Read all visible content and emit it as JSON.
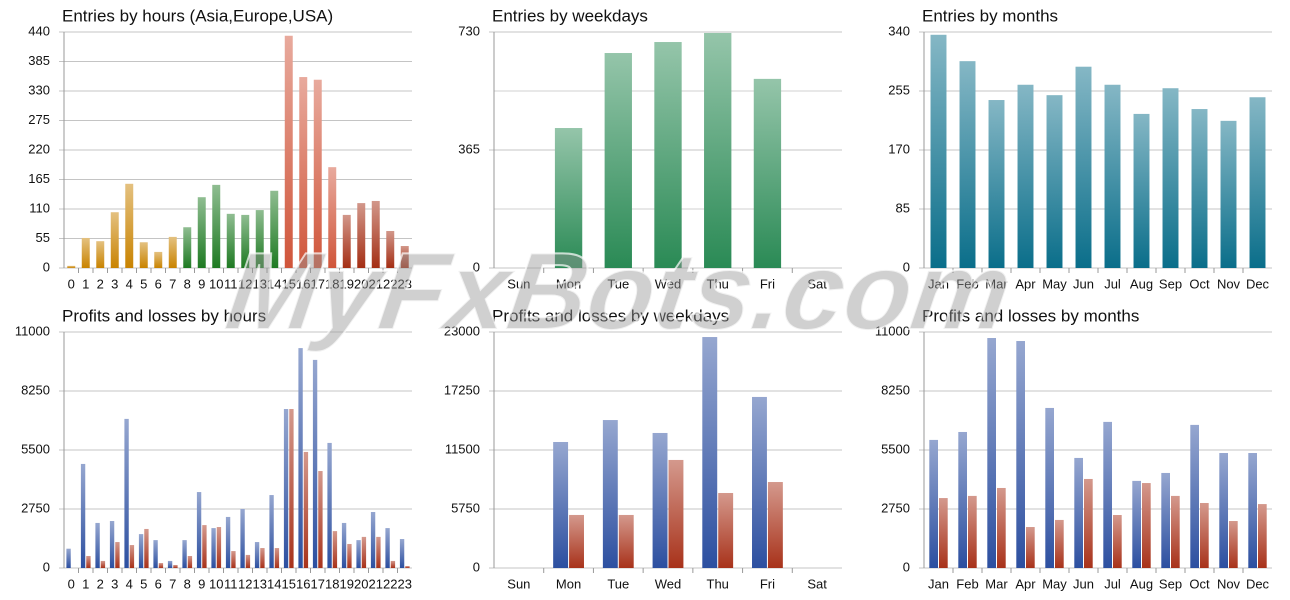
{
  "watermark": "MyFxBots.com",
  "chart_data": [
    {
      "type": "bar",
      "title": "Entries by hours (Asia,Europe,USA)",
      "categories": [
        "0",
        "1",
        "2",
        "3",
        "4",
        "5",
        "6",
        "7",
        "8",
        "9",
        "10",
        "11",
        "12",
        "13",
        "14",
        "15",
        "16",
        "17",
        "18",
        "19",
        "20",
        "21",
        "22",
        "23"
      ],
      "values": [
        4,
        56,
        50,
        104,
        157,
        48,
        30,
        58,
        76,
        132,
        155,
        101,
        99,
        108,
        144,
        433,
        356,
        351,
        188,
        99,
        121,
        125,
        69,
        41
      ],
      "colors": [
        "#c98300",
        "#c98300",
        "#c98300",
        "#c98300",
        "#c98300",
        "#c98300",
        "#c98300",
        "#c98300",
        "#1e7a22",
        "#1e7a22",
        "#1e7a22",
        "#1e7a22",
        "#1e7a22",
        "#1e7a22",
        "#1e7a22",
        "#d0553a",
        "#d0553a",
        "#d0553a",
        "#d0553a",
        "#a42e14",
        "#a42e14",
        "#a42e14",
        "#a42e14",
        "#a42e14"
      ],
      "ylim": [
        0,
        440
      ],
      "yticks": [
        0,
        55,
        110,
        165,
        220,
        275,
        330,
        385,
        440
      ],
      "grid": true
    },
    {
      "type": "bar",
      "title": "Entries by weekdays",
      "categories": [
        "Sun",
        "Mon",
        "Tue",
        "Wed",
        "Thu",
        "Fri",
        "Sat"
      ],
      "values": [
        0,
        433,
        665,
        699,
        727,
        585,
        0
      ],
      "color": "#2a8a55",
      "ylim": [
        0,
        730
      ],
      "yticks": [
        0,
        365,
        730
      ],
      "grid": true,
      "minor_grid": true
    },
    {
      "type": "bar",
      "title": "Entries by months",
      "categories": [
        "Jan",
        "Feb",
        "Mar",
        "Apr",
        "May",
        "Jun",
        "Jul",
        "Aug",
        "Sep",
        "Oct",
        "Nov",
        "Dec"
      ],
      "values": [
        336,
        298,
        242,
        264,
        249,
        290,
        264,
        222,
        259,
        229,
        212,
        246
      ],
      "color": "#0a6e8a",
      "ylim": [
        0,
        340
      ],
      "yticks": [
        0,
        85,
        170,
        255,
        340
      ],
      "grid": true
    },
    {
      "type": "grouped-bar",
      "title": "Profits and losses by hours",
      "categories": [
        "0",
        "1",
        "2",
        "3",
        "4",
        "5",
        "6",
        "7",
        "8",
        "9",
        "10",
        "11",
        "12",
        "13",
        "14",
        "15",
        "16",
        "17",
        "18",
        "19",
        "20",
        "21",
        "22",
        "23"
      ],
      "series": [
        {
          "color": "#2c4fa0",
          "values": [
            900,
            4850,
            2100,
            2190,
            6950,
            1580,
            1300,
            330,
            1300,
            3540,
            1860,
            2380,
            2750,
            1210,
            3400,
            7410,
            10250,
            9700,
            5830,
            2100,
            1300,
            2610,
            1860,
            1350
          ]
        },
        {
          "color": "#a8321a",
          "values": [
            0,
            560,
            330,
            1210,
            1070,
            1820,
            230,
            140,
            560,
            2000,
            1910,
            790,
            610,
            930,
            930,
            7410,
            5410,
            4520,
            1720,
            1120,
            1450,
            1450,
            330,
            90
          ]
        }
      ],
      "ylim": [
        0,
        11000
      ],
      "yticks": [
        0,
        2750,
        5500,
        8250,
        11000
      ],
      "grid": true
    },
    {
      "type": "grouped-bar",
      "title": "Profits and losses by weekdays",
      "categories": [
        "Sun",
        "Mon",
        "Tue",
        "Wed",
        "Thu",
        "Fri",
        "Sat"
      ],
      "series": [
        {
          "color": "#2c4fa0",
          "values": [
            0,
            12280,
            14420,
            13160,
            22510,
            16670,
            0
          ]
        },
        {
          "color": "#a8321a",
          "values": [
            0,
            5170,
            5170,
            10530,
            7310,
            8380,
            0
          ]
        }
      ],
      "ylim": [
        0,
        23000
      ],
      "yticks": [
        0,
        5750,
        11500,
        17250,
        23000
      ],
      "grid": true
    },
    {
      "type": "grouped-bar",
      "title": "Profits and losses by months",
      "categories": [
        "Jan",
        "Feb",
        "Mar",
        "Apr",
        "May",
        "Jun",
        "Jul",
        "Aug",
        "Sep",
        "Oct",
        "Nov",
        "Dec"
      ],
      "series": [
        {
          "color": "#2c4fa0",
          "values": [
            5970,
            6340,
            10720,
            10580,
            7460,
            5130,
            6810,
            4060,
            4430,
            6670,
            5360,
            5360
          ]
        },
        {
          "color": "#a8321a",
          "values": [
            3260,
            3360,
            3730,
            1910,
            2240,
            4150,
            2470,
            3960,
            3360,
            3030,
            2190,
            2980
          ]
        }
      ],
      "ylim": [
        0,
        11000
      ],
      "yticks": [
        0,
        2750,
        5500,
        8250,
        11000
      ],
      "grid": true
    }
  ]
}
